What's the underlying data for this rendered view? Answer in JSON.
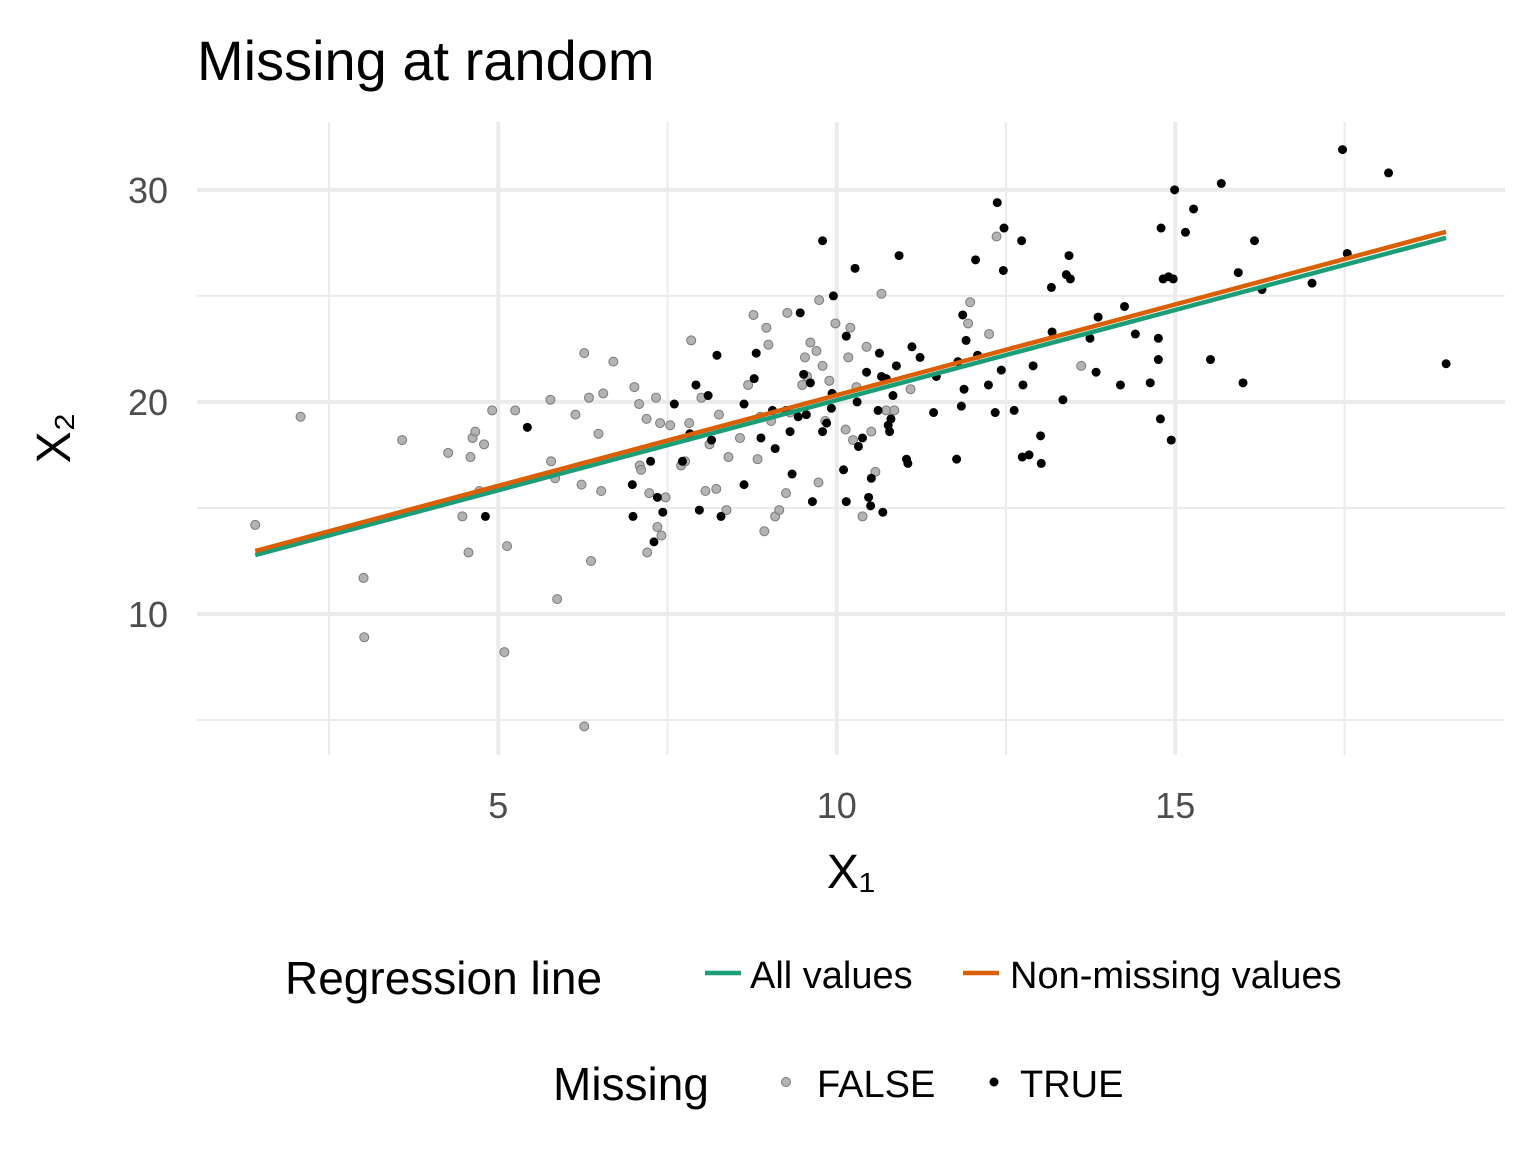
{
  "chart_data": {
    "type": "scatter",
    "title": "Missing at random",
    "xlabel": "X₁",
    "ylabel": "X₂",
    "xlim": [
      0.55,
      19.87
    ],
    "ylim": [
      3.35,
      33.2
    ],
    "xticks": [
      5,
      10,
      15
    ],
    "yticks": [
      10,
      20,
      30
    ],
    "xminor": [
      2.5,
      7.5,
      12.5,
      17.5
    ],
    "yminor": [
      5,
      15,
      25
    ],
    "grid": true,
    "legend_position": "bottom",
    "point_legend_title": "Missing",
    "line_legend_title": "Regression line",
    "series": [
      {
        "name": "FALSE",
        "color": "#a6a6a6",
        "x": [
          1.41,
          2.08,
          3.01,
          3.02,
          3.58,
          4.26,
          4.47,
          4.56,
          4.59,
          4.62,
          4.66,
          4.79,
          4.72,
          4.91,
          5.09,
          5.13,
          5.25,
          5.77,
          5.78,
          5.84,
          5.87,
          6.14,
          6.23,
          6.27,
          6.27,
          6.34,
          6.37,
          6.48,
          6.52,
          6.55,
          6.7,
          7.01,
          7.08,
          7.09,
          7.11,
          7.19,
          7.2,
          7.23,
          7.33,
          7.35,
          7.39,
          7.41,
          7.47,
          7.54,
          7.7,
          7.76,
          7.85,
          7.82,
          8.0,
          8.06,
          8.12,
          8.22,
          8.26,
          8.37,
          8.4,
          8.57,
          8.69,
          8.77,
          8.83,
          8.87,
          8.93,
          8.96,
          8.99,
          9.03,
          9.09,
          9.15,
          9.27,
          9.25,
          9.31,
          9.49,
          9.53,
          9.56,
          9.61,
          9.7,
          9.74,
          9.73,
          9.79,
          9.83,
          9.89,
          9.98,
          10.13,
          10.17,
          10.2,
          10.24,
          10.29,
          10.38,
          10.44,
          10.51,
          10.57,
          10.66,
          10.73,
          10.85,
          11.09,
          11.97,
          11.94,
          12.25,
          12.36,
          13.61
        ],
        "values": [
          14.2,
          19.3,
          11.7,
          8.9,
          18.2,
          17.6,
          14.6,
          12.9,
          17.4,
          18.3,
          18.6,
          18.0,
          15.8,
          19.6,
          8.2,
          13.2,
          19.6,
          20.1,
          17.2,
          16.4,
          10.7,
          19.4,
          16.1,
          22.3,
          4.7,
          20.2,
          12.5,
          18.5,
          15.8,
          20.4,
          21.9,
          20.7,
          19.9,
          17.0,
          16.8,
          19.2,
          12.9,
          15.7,
          20.2,
          14.1,
          19.0,
          13.7,
          15.5,
          18.9,
          17.0,
          17.2,
          22.9,
          19.0,
          20.2,
          15.8,
          18.0,
          15.9,
          19.4,
          14.9,
          17.4,
          18.3,
          20.8,
          24.1,
          17.3,
          19.3,
          13.9,
          23.5,
          22.7,
          19.1,
          14.6,
          14.9,
          24.2,
          15.7,
          19.5,
          20.8,
          22.1,
          21.2,
          22.8,
          22.4,
          24.8,
          16.2,
          21.7,
          19.1,
          21.0,
          23.7,
          18.7,
          22.1,
          23.5,
          18.2,
          20.7,
          14.6,
          22.6,
          18.6,
          16.7,
          25.1,
          19.6,
          19.6,
          20.6,
          24.7,
          23.7,
          23.2,
          27.8,
          21.7
        ]
      },
      {
        "name": "TRUE",
        "color": "#000000",
        "x": [
          4.81,
          5.43,
          6.98,
          6.99,
          7.25,
          7.3,
          7.35,
          7.43,
          7.6,
          7.72,
          7.83,
          7.92,
          7.97,
          8.1,
          8.15,
          8.23,
          8.29,
          8.63,
          8.63,
          8.78,
          8.81,
          8.88,
          9.05,
          9.09,
          9.25,
          9.31,
          9.34,
          9.43,
          9.46,
          9.51,
          9.55,
          9.61,
          9.64,
          9.79,
          9.79,
          9.85,
          9.92,
          9.95,
          9.93,
          10.1,
          10.14,
          10.14,
          10.27,
          10.3,
          10.32,
          10.38,
          10.44,
          10.47,
          10.5,
          10.51,
          10.61,
          10.63,
          10.66,
          10.68,
          10.73,
          10.76,
          10.78,
          10.8,
          10.83,
          10.88,
          10.92,
          11.03,
          11.05,
          11.11,
          11.23,
          11.43,
          11.47,
          11.77,
          11.79,
          11.84,
          11.86,
          11.88,
          11.91,
          12.05,
          12.08,
          12.24,
          12.34,
          12.37,
          12.43,
          12.46,
          12.47,
          12.62,
          12.73,
          12.74,
          12.75,
          12.84,
          12.9,
          13.01,
          13.02,
          13.17,
          13.18,
          13.34,
          13.39,
          13.43,
          13.45,
          13.74,
          13.83,
          13.86,
          14.19,
          14.25,
          14.41,
          14.63,
          14.75,
          14.75,
          14.78,
          14.79,
          14.82,
          14.9,
          14.94,
          14.97,
          14.99,
          15.15,
          15.27,
          15.52,
          15.68,
          15.93,
          16.0,
          16.17,
          16.28,
          17.02,
          17.54,
          17.47,
          18.15,
          19.0
        ],
        "values": [
          14.6,
          18.8,
          16.1,
          14.6,
          17.2,
          13.4,
          15.5,
          14.8,
          19.9,
          17.2,
          18.5,
          20.8,
          14.9,
          20.3,
          18.2,
          22.2,
          14.6,
          16.1,
          19.9,
          21.1,
          22.3,
          18.3,
          19.6,
          17.8,
          19.6,
          18.6,
          16.6,
          19.3,
          24.2,
          21.3,
          19.4,
          20.9,
          15.3,
          27.6,
          18.6,
          19.0,
          19.7,
          25.0,
          20.4,
          16.8,
          15.3,
          23.1,
          26.3,
          20.0,
          17.9,
          18.3,
          21.4,
          15.5,
          15.1,
          16.4,
          19.6,
          22.3,
          21.2,
          14.8,
          21.1,
          18.9,
          18.6,
          19.2,
          20.3,
          21.7,
          26.9,
          17.3,
          17.1,
          22.6,
          22.1,
          19.5,
          21.2,
          17.3,
          21.9,
          19.8,
          24.1,
          20.6,
          22.9,
          26.7,
          22.2,
          20.8,
          19.5,
          29.4,
          21.5,
          26.2,
          28.2,
          19.6,
          27.6,
          17.4,
          20.8,
          17.5,
          21.7,
          18.4,
          17.1,
          25.4,
          23.3,
          20.1,
          26.0,
          26.9,
          25.8,
          23.0,
          21.4,
          24.0,
          20.8,
          24.5,
          23.2,
          20.9,
          22.0,
          23.0,
          19.2,
          28.2,
          25.8,
          25.9,
          18.2,
          25.8,
          30.0,
          28.0,
          29.1,
          22.0,
          30.3,
          26.1,
          20.9,
          27.6,
          25.3,
          25.6,
          27.0,
          31.9,
          30.8,
          21.8
        ]
      }
    ],
    "lines": [
      {
        "name": "All values",
        "color": "#1b9e77",
        "x": [
          1.41,
          19.0
        ],
        "values": [
          12.78,
          27.74
        ]
      },
      {
        "name": "Non-missing values",
        "color": "#d95f02",
        "x": [
          1.41,
          19.0
        ],
        "values": [
          12.97,
          28.02
        ]
      }
    ]
  }
}
